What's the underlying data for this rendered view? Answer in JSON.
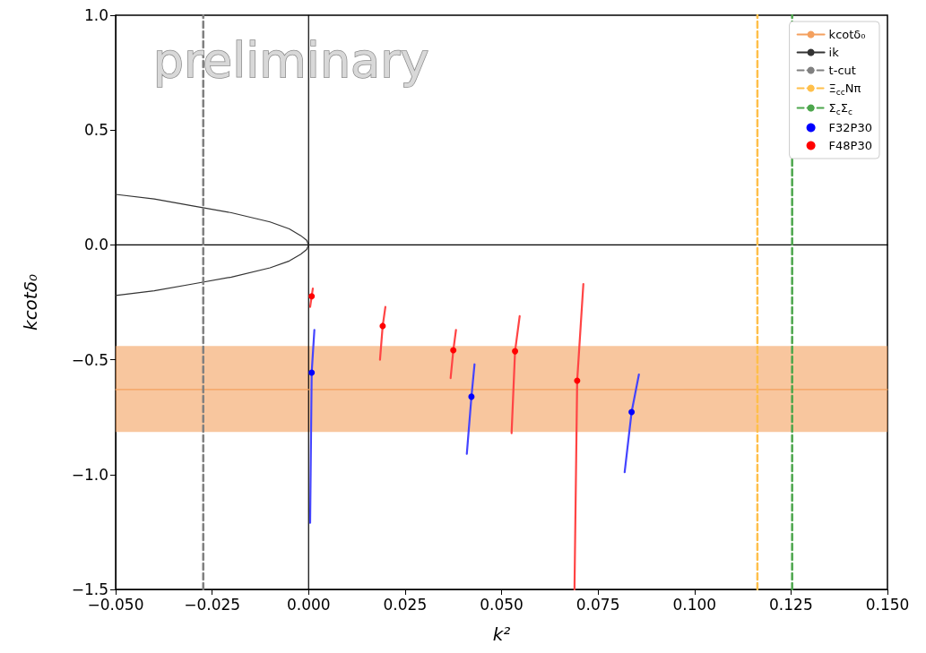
{
  "chart_data": {
    "type": "line",
    "xlabel": "k²",
    "ylabel": "kcotδ₀",
    "annotations": [
      "preliminary"
    ],
    "xlim": [
      -0.05,
      0.15
    ],
    "ylim": [
      -1.5,
      1.0
    ],
    "xticks": [
      {
        "value": -0.05,
        "label": "−0.050"
      },
      {
        "value": -0.025,
        "label": "−0.025"
      },
      {
        "value": 0,
        "label": "0.000"
      },
      {
        "value": 0.025,
        "label": "0.025"
      },
      {
        "value": 0.05,
        "label": "0.050"
      },
      {
        "value": 0.075,
        "label": "0.075"
      },
      {
        "value": 0.1,
        "label": "0.100"
      },
      {
        "value": 0.125,
        "label": "0.125"
      },
      {
        "value": 0.15,
        "label": "0.150"
      }
    ],
    "yticks": [
      {
        "value": -1.5,
        "label": "−1.5"
      },
      {
        "value": -1.0,
        "label": "−1.0"
      },
      {
        "value": -0.5,
        "label": "−0.5"
      },
      {
        "value": 0,
        "label": "0.0"
      },
      {
        "value": 0.5,
        "label": "0.5"
      },
      {
        "value": 1.0,
        "label": "1.0"
      }
    ],
    "grid": false,
    "legend": "top right",
    "series": [
      {
        "color": "#000000",
        "marker": "none",
        "x": [
          0,
          0
        ],
        "values": [
          -1.5,
          1.0
        ]
      },
      {
        "color": "#000000",
        "marker": "none",
        "x": [
          -0.05,
          0.15
        ],
        "values": [
          0,
          0
        ]
      },
      {
        "name": "kcotδ₀",
        "color": "#f4a05e",
        "marker": "none",
        "x": [
          -0.05,
          0.15
        ],
        "values": [
          -0.63,
          -0.63
        ],
        "lower": [
          -0.815,
          -0.815
        ],
        "upper": [
          -0.44,
          -0.44
        ]
      },
      {
        "name": "ik",
        "color": "#333333",
        "marker": "none",
        "x": [
          -0.05,
          -0.04,
          -0.03,
          -0.02,
          -0.01,
          -0.005,
          -0.002,
          -0.0005,
          0,
          -0.0005,
          -0.002,
          -0.005,
          -0.01,
          -0.02,
          -0.03,
          -0.04,
          -0.05
        ],
        "values": [
          0.22,
          0.2,
          0.17,
          0.14,
          0.1,
          0.07,
          0.04,
          0.02,
          0,
          -0.02,
          -0.04,
          -0.07,
          -0.1,
          -0.14,
          -0.17,
          -0.2,
          -0.22
        ]
      },
      {
        "name": "t-cut",
        "type": "line",
        "color": "#808080",
        "marker": "none",
        "line_style": "dashed",
        "x": [
          -0.0273,
          -0.0273
        ],
        "values": [
          -1.5,
          1.0
        ]
      },
      {
        "name": "Ξ$_{cc}$Nπ",
        "type": "line",
        "color": "#ffbf4a",
        "marker": "none",
        "line_style": "dashed",
        "x": [
          0.1163,
          0.1163
        ],
        "values": [
          -1.5,
          1.0
        ]
      },
      {
        "name": "Σ$_{c}$Σ$_{c}$",
        "type": "line",
        "color": "#4ca64c",
        "marker": "none",
        "line_style": "dashed",
        "x": [
          0.1253,
          0.1253
        ],
        "values": [
          -1.5,
          1.0
        ]
      },
      {
        "type": "line",
        "color": "#4444ff",
        "marker": "none",
        "x": [
          0.0004,
          0.0008,
          0.0015
        ],
        "values": [
          -1.21,
          -0.556,
          -0.37
        ]
      },
      {
        "type": "line",
        "color": "#4444ff",
        "marker": "none",
        "x": [
          0.041,
          0.0422,
          0.043
        ],
        "values": [
          -0.91,
          -0.661,
          -0.52
        ]
      },
      {
        "type": "line",
        "color": "#4444ff",
        "marker": "none",
        "x": [
          0.0819,
          0.0837,
          0.0856
        ],
        "values": [
          -0.99,
          -0.728,
          -0.564
        ]
      },
      {
        "type": "line",
        "color": "#ff4444",
        "marker": "none",
        "x": [
          0.0004,
          0.0008,
          0.0011
        ],
        "values": [
          -0.27,
          -0.224,
          -0.19
        ]
      },
      {
        "type": "line",
        "color": "#ff4444",
        "marker": "none",
        "x": [
          0.0185,
          0.0192,
          0.0199
        ],
        "values": [
          -0.5,
          -0.353,
          -0.27
        ]
      },
      {
        "type": "line",
        "color": "#ff4444",
        "marker": "none",
        "x": [
          0.0368,
          0.0375,
          0.0382
        ],
        "values": [
          -0.58,
          -0.459,
          -0.37
        ]
      },
      {
        "type": "line",
        "color": "#ff4444",
        "marker": "none",
        "x": [
          0.0526,
          0.0535,
          0.0547
        ],
        "values": [
          -0.82,
          -0.463,
          -0.31
        ]
      },
      {
        "type": "line",
        "color": "#ff4444",
        "marker": "none",
        "x": [
          0.0689,
          0.0696,
          0.0712
        ],
        "values": [
          -1.5,
          -0.591,
          -0.17
        ]
      },
      {
        "name": "F32P30",
        "type": "scatter",
        "color": "#0000ff",
        "marker": "circle",
        "x": [
          0.0008,
          0.0422,
          0.0837
        ],
        "values": [
          -0.556,
          -0.661,
          -0.728
        ]
      },
      {
        "name": "F48P30",
        "type": "scatter",
        "color": "#ff0000",
        "marker": "circle",
        "x": [
          0.0008,
          0.0192,
          0.0375,
          0.0535,
          0.0696
        ],
        "values": [
          -0.224,
          -0.353,
          -0.459,
          -0.463,
          -0.591
        ]
      }
    ]
  }
}
